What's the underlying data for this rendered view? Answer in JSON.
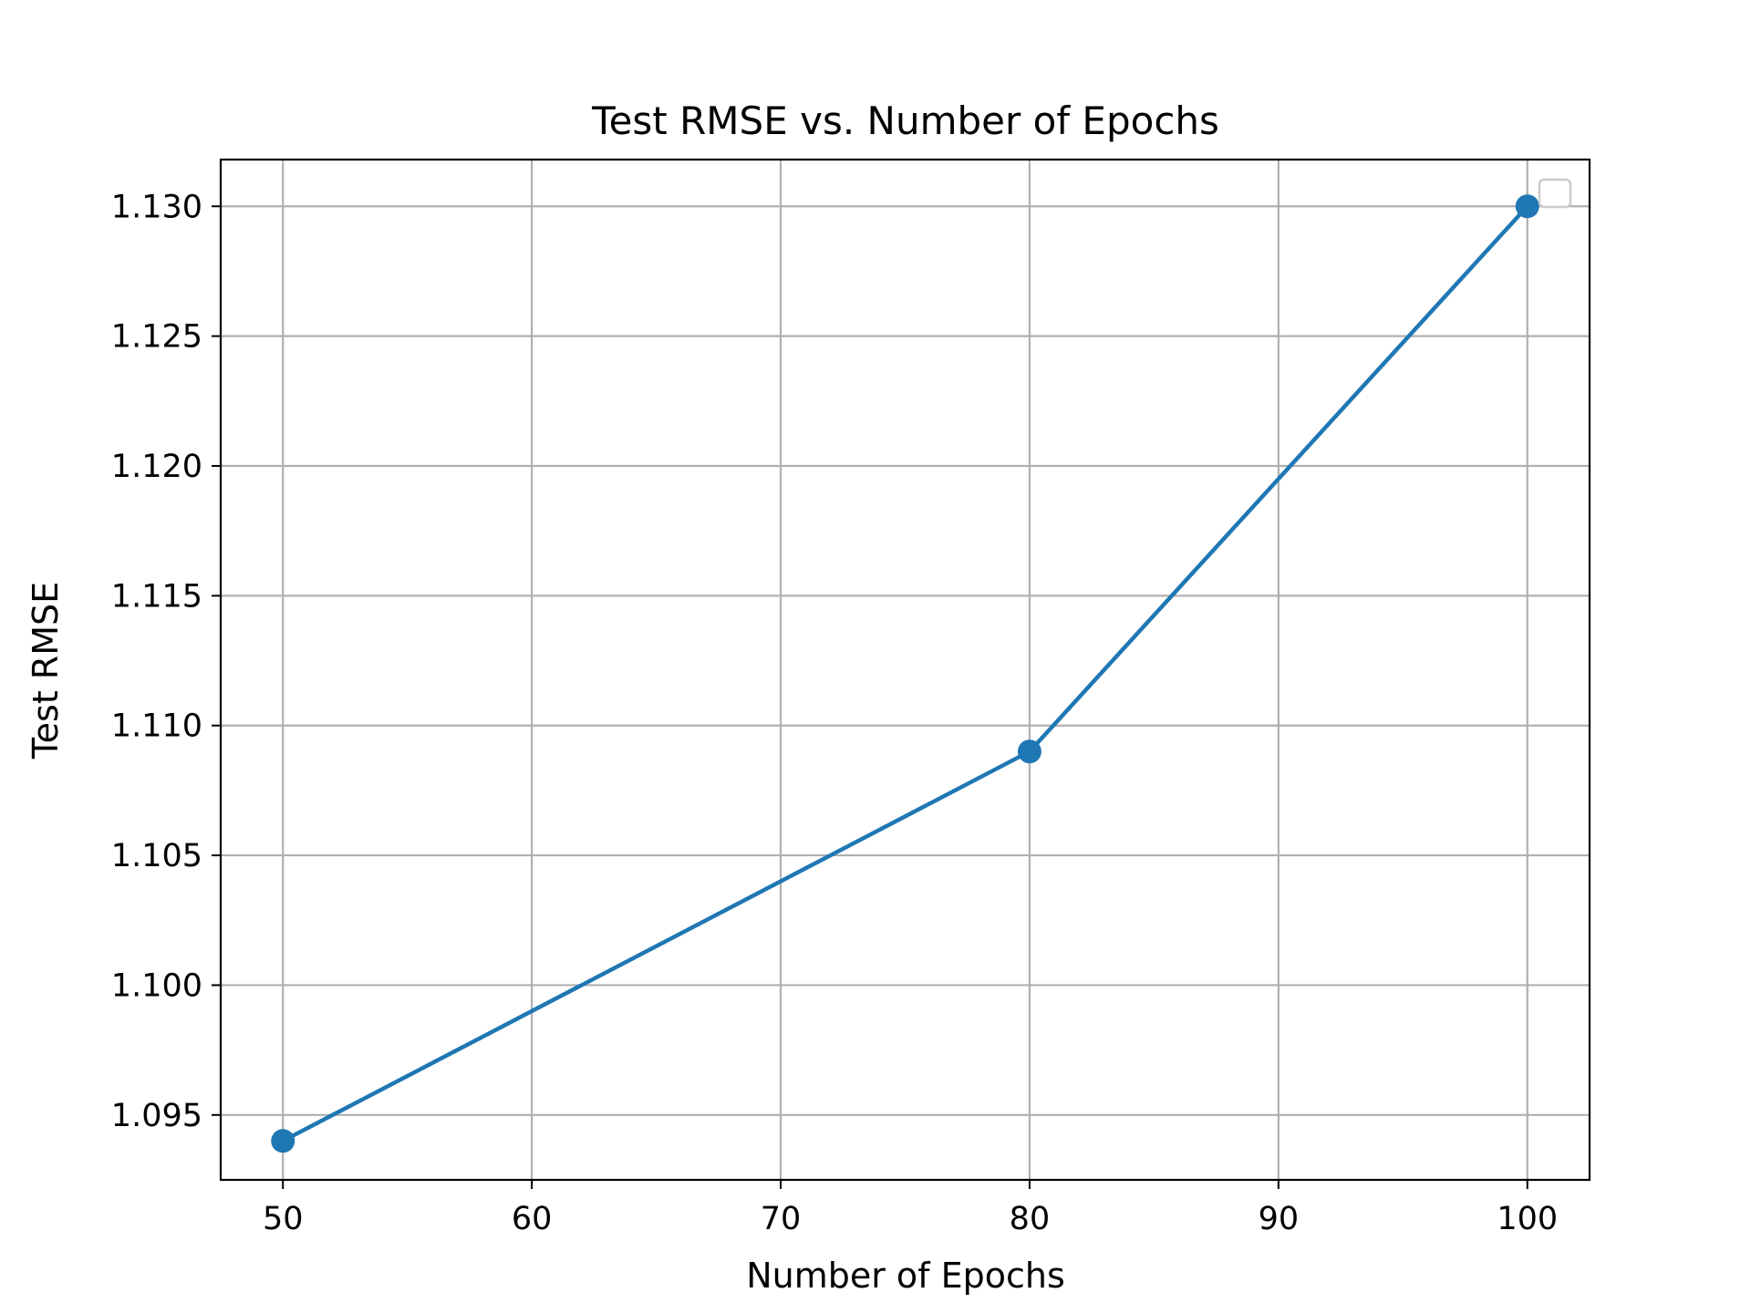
{
  "chart_data": {
    "type": "line",
    "title": "Test RMSE vs. Number of Epochs",
    "xlabel": "Number of Epochs",
    "ylabel": "Test RMSE",
    "x": [
      50,
      80,
      100
    ],
    "series": [
      {
        "values": [
          1.094,
          1.109,
          1.13
        ],
        "color": "#1f77b4",
        "marker": "circle"
      }
    ],
    "xlim": [
      47.5,
      102.5
    ],
    "ylim": [
      1.0925,
      1.1318
    ],
    "xticks": [
      50,
      60,
      70,
      80,
      90,
      100
    ],
    "xtick_labels": [
      "50",
      "60",
      "70",
      "80",
      "90",
      "100"
    ],
    "yticks": [
      1.095,
      1.1,
      1.105,
      1.11,
      1.115,
      1.12,
      1.125,
      1.13
    ],
    "ytick_labels": [
      "1.095",
      "1.100",
      "1.105",
      "1.110",
      "1.115",
      "1.120",
      "1.125",
      "1.130"
    ],
    "grid": true,
    "legend": {
      "placement": "top-right",
      "entries": []
    }
  }
}
